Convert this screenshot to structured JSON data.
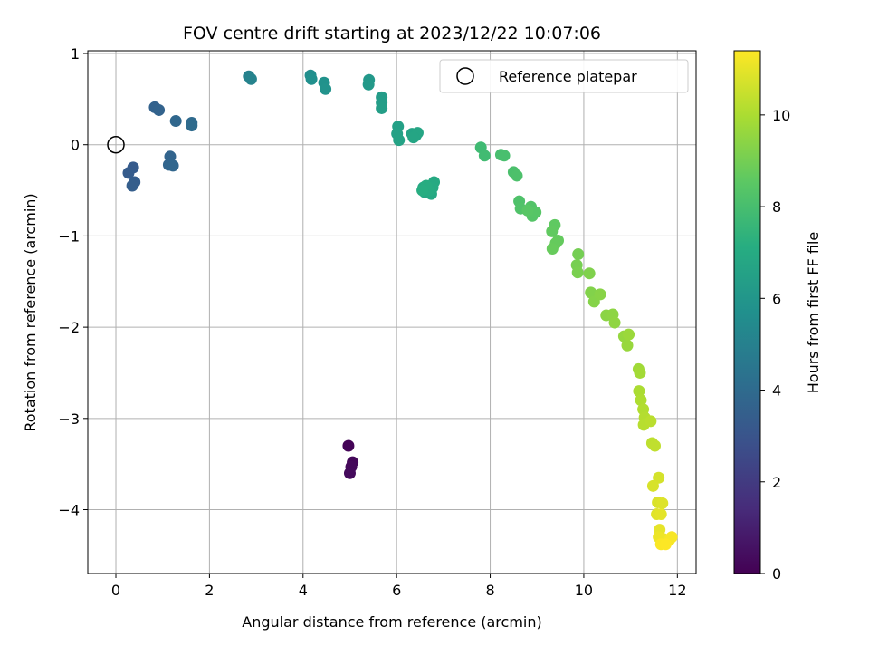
{
  "chart_data": {
    "type": "scatter",
    "title": "FOV centre drift starting at 2023/12/22 10:07:06",
    "xlabel": "Angular distance from reference (arcmin)",
    "ylabel": "Rotation from reference (arcmin)",
    "xlim": [
      -0.6,
      12.4
    ],
    "ylim": [
      -4.7,
      1.03
    ],
    "xticks": [
      0,
      2,
      4,
      6,
      8,
      10,
      12
    ],
    "yticks": [
      1,
      0,
      -1,
      -2,
      -3,
      -4
    ],
    "xtick_labels": [
      "0",
      "2",
      "4",
      "6",
      "8",
      "10",
      "12"
    ],
    "ytick_labels": [
      "1",
      "0",
      "−1",
      "−2",
      "−3",
      "−4"
    ],
    "grid": true,
    "legend": {
      "label": "Reference platepar",
      "placement": "top-right"
    },
    "reference_point": {
      "x": 0,
      "y": 0
    },
    "colorbar": {
      "label": "Hours from first FF file",
      "colormap": "viridis",
      "range": [
        0,
        11.4
      ],
      "ticks": [
        0,
        2,
        4,
        6,
        8,
        10
      ],
      "tick_labels": [
        "0",
        "2",
        "4",
        "6",
        "8",
        "10"
      ]
    },
    "series": [
      {
        "points": [
          [
            4.97,
            -3.3,
            0.1
          ],
          [
            5.06,
            -3.48,
            0.2
          ],
          [
            5.03,
            -3.53,
            0.25
          ],
          [
            5.0,
            -3.6,
            0.3
          ],
          [
            0.37,
            -0.25,
            3.3
          ],
          [
            0.27,
            -0.31,
            3.35
          ],
          [
            0.4,
            -0.41,
            3.4
          ],
          [
            0.35,
            -0.45,
            3.45
          ],
          [
            0.83,
            0.41,
            3.6
          ],
          [
            0.92,
            0.38,
            3.65
          ],
          [
            1.16,
            -0.13,
            3.7
          ],
          [
            1.13,
            -0.22,
            3.75
          ],
          [
            1.22,
            -0.23,
            3.8
          ],
          [
            1.28,
            0.26,
            3.85
          ],
          [
            1.62,
            0.24,
            3.95
          ],
          [
            1.62,
            0.21,
            4.0
          ],
          [
            2.84,
            0.75,
            5.0
          ],
          [
            2.89,
            0.72,
            5.1
          ],
          [
            4.16,
            0.76,
            5.6
          ],
          [
            4.18,
            0.72,
            5.7
          ],
          [
            4.45,
            0.68,
            5.8
          ],
          [
            4.48,
            0.61,
            5.85
          ],
          [
            5.41,
            0.71,
            6.1
          ],
          [
            5.4,
            0.66,
            6.15
          ],
          [
            5.68,
            0.52,
            6.3
          ],
          [
            5.68,
            0.46,
            6.35
          ],
          [
            5.68,
            0.4,
            6.4
          ],
          [
            6.03,
            0.2,
            6.5
          ],
          [
            6.01,
            0.12,
            6.55
          ],
          [
            6.05,
            0.05,
            6.6
          ],
          [
            6.33,
            0.12,
            6.65
          ],
          [
            6.41,
            0.1,
            6.7
          ],
          [
            6.45,
            0.13,
            6.72
          ],
          [
            6.36,
            0.08,
            6.75
          ],
          [
            6.57,
            -0.47,
            6.8
          ],
          [
            6.6,
            -0.52,
            6.85
          ],
          [
            6.74,
            -0.54,
            6.9
          ],
          [
            6.8,
            -0.41,
            6.95
          ],
          [
            6.77,
            -0.47,
            7.0
          ],
          [
            6.7,
            -0.5,
            7.05
          ],
          [
            6.63,
            -0.45,
            7.1
          ],
          [
            6.55,
            -0.5,
            7.12
          ],
          [
            7.8,
            -0.03,
            7.8
          ],
          [
            7.88,
            -0.12,
            7.85
          ],
          [
            8.23,
            -0.11,
            8.0
          ],
          [
            8.3,
            -0.12,
            8.05
          ],
          [
            8.5,
            -0.3,
            8.1
          ],
          [
            8.57,
            -0.34,
            8.15
          ],
          [
            8.62,
            -0.62,
            8.2
          ],
          [
            8.65,
            -0.7,
            8.25
          ],
          [
            8.87,
            -0.68,
            8.3
          ],
          [
            8.9,
            -0.78,
            8.35
          ],
          [
            8.97,
            -0.74,
            8.4
          ],
          [
            8.8,
            -0.72,
            8.45
          ],
          [
            9.38,
            -0.88,
            8.6
          ],
          [
            9.32,
            -0.95,
            8.65
          ],
          [
            9.45,
            -1.05,
            8.7
          ],
          [
            9.4,
            -1.08,
            8.72
          ],
          [
            9.33,
            -1.14,
            8.75
          ],
          [
            9.88,
            -1.2,
            9.0
          ],
          [
            9.85,
            -1.32,
            9.05
          ],
          [
            9.87,
            -1.4,
            9.1
          ],
          [
            10.12,
            -1.41,
            9.2
          ],
          [
            10.15,
            -1.62,
            9.25
          ],
          [
            10.22,
            -1.72,
            9.3
          ],
          [
            10.35,
            -1.64,
            9.35
          ],
          [
            10.48,
            -1.87,
            9.4
          ],
          [
            10.62,
            -1.86,
            9.45
          ],
          [
            10.66,
            -1.95,
            9.5
          ],
          [
            10.86,
            -2.1,
            9.6
          ],
          [
            10.93,
            -2.2,
            9.65
          ],
          [
            10.96,
            -2.08,
            9.7
          ],
          [
            11.17,
            -2.46,
            9.8
          ],
          [
            11.2,
            -2.5,
            9.85
          ],
          [
            11.18,
            -2.7,
            10.0
          ],
          [
            11.22,
            -2.8,
            10.05
          ],
          [
            11.27,
            -2.9,
            10.1
          ],
          [
            11.3,
            -2.99,
            10.15
          ],
          [
            11.28,
            -3.07,
            10.2
          ],
          [
            11.43,
            -3.03,
            10.25
          ],
          [
            11.46,
            -3.27,
            10.3
          ],
          [
            11.52,
            -3.3,
            10.35
          ],
          [
            11.6,
            -3.65,
            10.7
          ],
          [
            11.48,
            -3.74,
            10.75
          ],
          [
            11.58,
            -3.92,
            10.8
          ],
          [
            11.68,
            -3.93,
            10.85
          ],
          [
            11.56,
            -4.05,
            10.9
          ],
          [
            11.65,
            -4.05,
            10.95
          ],
          [
            11.62,
            -4.22,
            11.0
          ],
          [
            11.6,
            -4.3,
            11.1
          ],
          [
            11.7,
            -4.32,
            11.15
          ],
          [
            11.78,
            -4.35,
            11.2
          ],
          [
            11.83,
            -4.33,
            11.25
          ],
          [
            11.88,
            -4.3,
            11.3
          ],
          [
            11.65,
            -4.38,
            11.35
          ],
          [
            11.75,
            -4.38,
            11.38
          ]
        ]
      }
    ]
  }
}
